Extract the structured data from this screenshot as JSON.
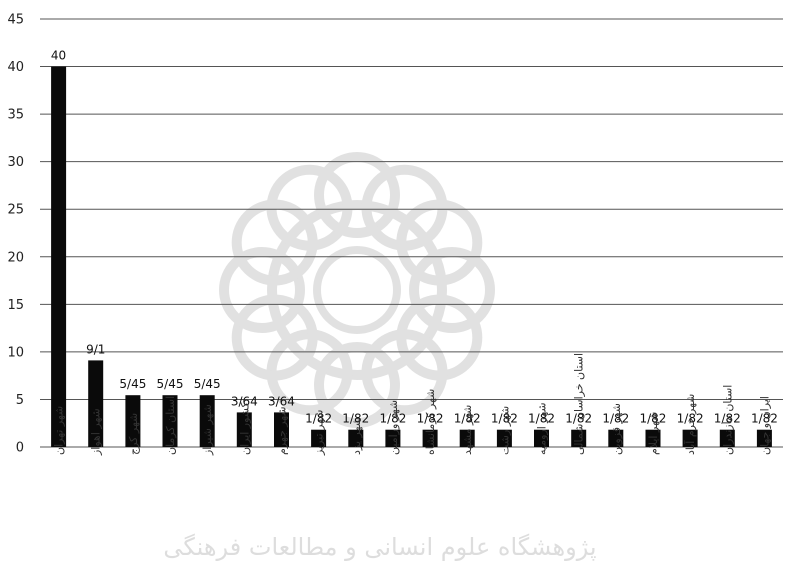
{
  "chart_data": {
    "type": "bar",
    "categories": [
      "شهر تهران",
      "شهر اهواز",
      "شهر کرج",
      "استان کرمان",
      "شهر شیراز",
      "کشور ایران",
      "شهر جهرم",
      "شهر تبریز",
      "شهر یزد",
      "شهر ورامین",
      "شهر کرمانشاه",
      "شهر مشهد",
      "شهر رشت",
      "شهر ارومیه",
      "استان خراسان شمالی",
      "شهر قزوین",
      "شهر ایلام",
      "شهر خرم آباد",
      "استان مازندران",
      "ایران و جهان"
    ],
    "values": [
      40,
      9.1,
      5.45,
      5.45,
      5.45,
      3.64,
      3.64,
      1.82,
      1.82,
      1.82,
      1.82,
      1.82,
      1.82,
      1.82,
      1.82,
      1.82,
      1.82,
      1.82,
      1.82,
      1.82
    ],
    "data_labels": [
      "40",
      "9/1",
      "5/45",
      "5/45",
      "5/45",
      "3/64",
      "3/64",
      "1/82",
      "1/82",
      "1/82",
      "1/82",
      "1/82",
      "1/82",
      "1/82",
      "1/82",
      "1/82",
      "1/82",
      "1/82",
      "1/82",
      "1/82"
    ],
    "yticks": [
      "0",
      "5",
      "10",
      "15",
      "20",
      "25",
      "30",
      "35",
      "40",
      "45"
    ],
    "ylim": [
      0,
      45
    ],
    "grid": true,
    "legend": "none",
    "colors": {
      "bar": "#0a0a0a",
      "grid": "#555555",
      "watermark": "#c9c9c9"
    }
  },
  "watermark": {
    "text": "پژوهشگاه علوم انسانی و مطالعات فرهنگی"
  }
}
